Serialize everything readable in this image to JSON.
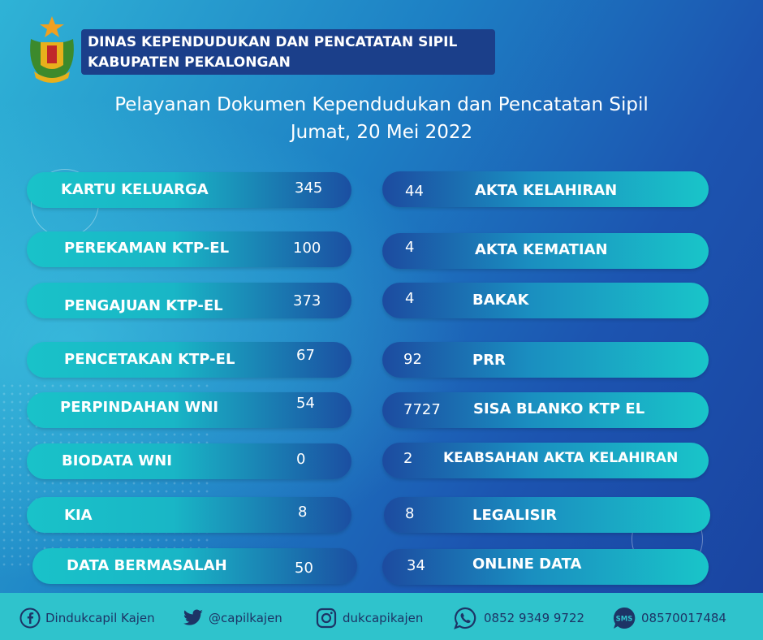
{
  "header": {
    "line1": "DINAS KEPENDUDUKAN DAN PENCATATAN SIPIL",
    "line2": "KABUPATEN PEKALONGAN"
  },
  "title": {
    "line1": "Pelayanan Dokumen Kependudukan dan Pencatatan Sipil",
    "line2": "Jumat, 20 Mei 2022"
  },
  "left_items": [
    {
      "label": "KARTU KELUARGA",
      "value": "345"
    },
    {
      "label": "PEREKAMAN KTP-EL",
      "value": "100"
    },
    {
      "label": "PENGAJUAN KTP-EL",
      "value": "373"
    },
    {
      "label": "PENCETAKAN KTP-EL",
      "value": "67"
    },
    {
      "label": "PERPINDAHAN WNI",
      "value": "54"
    },
    {
      "label": "BIODATA WNI",
      "value": "0"
    },
    {
      "label": "KIA",
      "value": "8"
    },
    {
      "label": "DATA BERMASALAH",
      "value": "50"
    }
  ],
  "right_items": [
    {
      "label": "AKTA KELAHIRAN",
      "value": "44"
    },
    {
      "label": "AKTA KEMATIAN",
      "value": "4"
    },
    {
      "label": "BAKAK",
      "value": "4"
    },
    {
      "label": "PRR",
      "value": "92"
    },
    {
      "label": "SISA BLANKO KTP EL",
      "value": "7727"
    },
    {
      "label": "KEABSAHAN AKTA KELAHIRAN",
      "value": "2"
    },
    {
      "label": "LEGALISIR",
      "value": "8"
    },
    {
      "label": "ONLINE DATA",
      "value": "34"
    }
  ],
  "footer": {
    "facebook": "Dindukcapil Kajen",
    "twitter": "@capilkajen",
    "instagram": "dukcapikajen",
    "whatsapp": "0852 9349 9722",
    "sms": "08570017484",
    "sms_icon_text": "SMS"
  },
  "icons": [
    "regency-emblem-logo",
    "facebook-icon",
    "twitter-icon",
    "instagram-icon",
    "whatsapp-icon",
    "sms-icon"
  ],
  "colors": {
    "pill_teal": "#19c2c9",
    "pill_blue": "#1b4fa2",
    "footer": "#2fc3cc",
    "header_box": "#1b3f8a"
  }
}
